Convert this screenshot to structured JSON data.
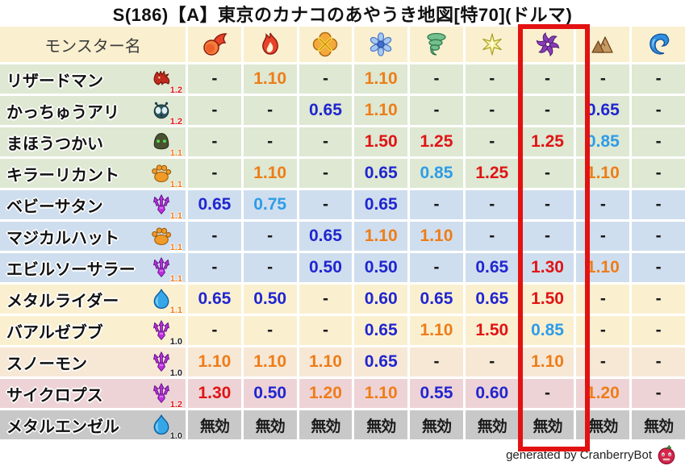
{
  "title": "S(186)【A】東京のカナコのあやうき地図[特70](ドルマ)",
  "chart_data": {
    "type": "table",
    "title": "S(186)【A】東京のカナコのあやうき地図[特70](ドルマ)",
    "name_column_header": "モンスター名",
    "element_columns": [
      "fireball-icon",
      "flame-icon",
      "burst-icon",
      "snowflake-icon",
      "tornado-icon",
      "spark-icon",
      "pinwheel-icon",
      "mountain-icon",
      "wave-icon"
    ],
    "highlighted_column": {
      "index": 7,
      "icon": "pinwheel-icon",
      "color": "#e31212"
    },
    "rows": [
      {
        "name": "リザードマン",
        "icon": "dragon-icon",
        "multiplier": "1.2",
        "multiplier_color": "red",
        "row_color": "green",
        "values": [
          "-",
          "1.10",
          "-",
          "1.10",
          "-",
          "-",
          "-",
          "-",
          "-"
        ],
        "value_colors": [
          "k",
          "o",
          "k",
          "o",
          "k",
          "k",
          "k",
          "k",
          "k"
        ]
      },
      {
        "name": "かっちゅうアリ",
        "icon": "bug-icon",
        "multiplier": "1.2",
        "multiplier_color": "red",
        "row_color": "green",
        "values": [
          "-",
          "-",
          "0.65",
          "1.10",
          "-",
          "-",
          "-",
          "0.65",
          "-"
        ],
        "value_colors": [
          "k",
          "k",
          "b",
          "o",
          "k",
          "k",
          "k",
          "b",
          "k"
        ]
      },
      {
        "name": "まほうつかい",
        "icon": "hood-icon",
        "multiplier": "1.1",
        "multiplier_color": "orange",
        "row_color": "green",
        "values": [
          "-",
          "-",
          "-",
          "1.50",
          "1.25",
          "-",
          "1.25",
          "0.85",
          "-"
        ],
        "value_colors": [
          "k",
          "k",
          "k",
          "r",
          "r",
          "k",
          "r",
          "l",
          "k"
        ]
      },
      {
        "name": "キラーリカント",
        "icon": "paw-icon",
        "multiplier": "1.1",
        "multiplier_color": "orange",
        "row_color": "green",
        "values": [
          "-",
          "1.10",
          "-",
          "0.65",
          "0.85",
          "1.25",
          "-",
          "1.10",
          "-"
        ],
        "value_colors": [
          "k",
          "o",
          "k",
          "b",
          "l",
          "r",
          "k",
          "o",
          "k"
        ]
      },
      {
        "name": "ベビーサタン",
        "icon": "trident-icon",
        "multiplier": "1.1",
        "multiplier_color": "orange",
        "row_color": "blue",
        "values": [
          "0.65",
          "0.75",
          "-",
          "0.65",
          "-",
          "-",
          "-",
          "-",
          "-"
        ],
        "value_colors": [
          "b",
          "l",
          "k",
          "b",
          "k",
          "k",
          "k",
          "k",
          "k"
        ]
      },
      {
        "name": "マジカルハット",
        "icon": "paw-icon",
        "multiplier": "1.1",
        "multiplier_color": "orange",
        "row_color": "blue",
        "values": [
          "-",
          "-",
          "0.65",
          "1.10",
          "1.10",
          "-",
          "-",
          "-",
          "-"
        ],
        "value_colors": [
          "k",
          "k",
          "b",
          "o",
          "o",
          "k",
          "k",
          "k",
          "k"
        ]
      },
      {
        "name": "エビルソーサラー",
        "icon": "trident-icon",
        "multiplier": "1.1",
        "multiplier_color": "orange",
        "row_color": "blue",
        "values": [
          "-",
          "-",
          "0.50",
          "0.50",
          "-",
          "0.65",
          "1.30",
          "1.10",
          "-"
        ],
        "value_colors": [
          "k",
          "k",
          "b",
          "b",
          "k",
          "b",
          "r",
          "o",
          "k"
        ]
      },
      {
        "name": "メタルライダー",
        "icon": "slime-icon",
        "multiplier": "1.1",
        "multiplier_color": "orange",
        "row_color": "cream",
        "values": [
          "0.65",
          "0.50",
          "-",
          "0.60",
          "0.65",
          "0.65",
          "1.50",
          "-",
          "-"
        ],
        "value_colors": [
          "b",
          "b",
          "k",
          "b",
          "b",
          "b",
          "r",
          "k",
          "k"
        ]
      },
      {
        "name": "バアルゼブブ",
        "icon": "trident-icon",
        "multiplier": "1.0",
        "multiplier_color": "black",
        "row_color": "cream",
        "values": [
          "-",
          "-",
          "-",
          "0.65",
          "1.10",
          "1.50",
          "0.85",
          "-",
          "-"
        ],
        "value_colors": [
          "k",
          "k",
          "k",
          "b",
          "o",
          "r",
          "l",
          "k",
          "k"
        ]
      },
      {
        "name": "スノーモン",
        "icon": "trident-icon",
        "multiplier": "1.0",
        "multiplier_color": "black",
        "row_color": "peach",
        "values": [
          "1.10",
          "1.10",
          "1.10",
          "0.65",
          "-",
          "-",
          "1.10",
          "-",
          "-"
        ],
        "value_colors": [
          "o",
          "o",
          "o",
          "b",
          "k",
          "k",
          "o",
          "k",
          "k"
        ]
      },
      {
        "name": "サイクロプス",
        "icon": "trident-icon",
        "multiplier": "1.2",
        "multiplier_color": "red",
        "row_color": "pink",
        "values": [
          "1.30",
          "0.50",
          "1.20",
          "1.10",
          "0.55",
          "0.60",
          "-",
          "1.20",
          "-"
        ],
        "value_colors": [
          "r",
          "b",
          "o",
          "o",
          "b",
          "b",
          "k",
          "o",
          "k"
        ]
      },
      {
        "name": "メタルエンゼル",
        "icon": "slime-icon",
        "multiplier": "1.0",
        "multiplier_color": "black",
        "row_color": "gray",
        "values": [
          "無効",
          "無効",
          "無効",
          "無効",
          "無効",
          "無効",
          "無効",
          "無効",
          "無効"
        ],
        "value_colors": [
          "k",
          "k",
          "k",
          "k",
          "k",
          "k",
          "k",
          "k",
          "k"
        ]
      }
    ]
  },
  "colors": {
    "value_orange": "#ee7d18",
    "value_blue": "#2026cf",
    "value_light_blue": "#2e9ce8",
    "value_red": "#e01414",
    "text_black": "#1a1a1a",
    "row_green": "#dee8d2",
    "row_blue": "#cfdeee",
    "row_cream": "#faf0d0",
    "row_peach": "#f7e7d5",
    "row_pink": "#eed3d6",
    "row_gray": "#c8c8c8",
    "header_bg": "#faf0d0",
    "highlight_red": "#e31212"
  },
  "footer": {
    "credit": "generated by CranberryBot",
    "icon": "cranberry-bot-icon"
  }
}
